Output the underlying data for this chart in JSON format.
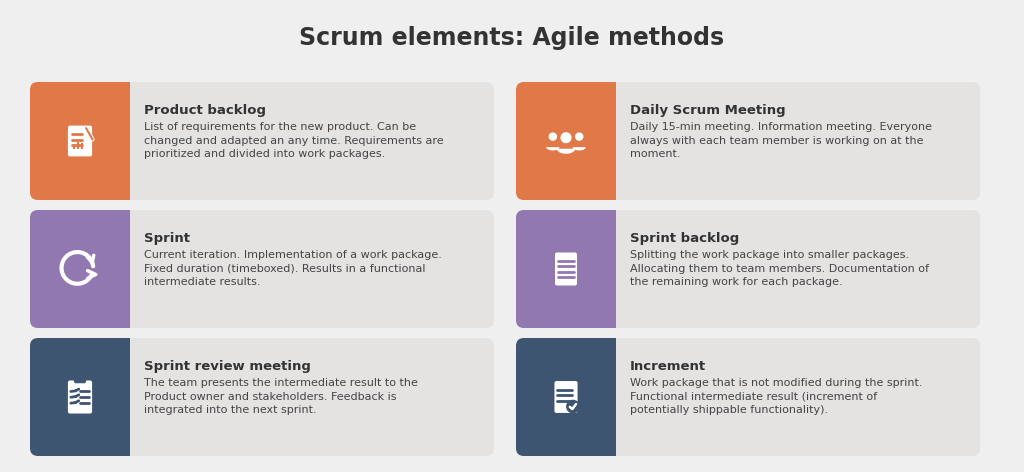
{
  "title": "Scrum elements: Agile methods",
  "title_fontsize": 17,
  "background_color": "#f0efef",
  "card_bg_color": "#e5e2e2",
  "cards": [
    {
      "row": 0,
      "col": 0,
      "icon_color": "#e07848",
      "title": "Product backlog",
      "text": "List of requirements for the new product. Can be\nchanged and adapted an any time. Requirements are\nprioritized and divided into work packages.",
      "icon": "backlog"
    },
    {
      "row": 0,
      "col": 1,
      "icon_color": "#e07848",
      "title": "Daily Scrum Meeting",
      "text": "Daily 15-min meeting. Information meeting. Everyone\nalways with each team member is working on at the\nmoment.",
      "icon": "meeting"
    },
    {
      "row": 1,
      "col": 0,
      "icon_color": "#9178b0",
      "title": "Sprint",
      "text": "Current iteration. Implementation of a work package.\nFixed duration (timeboxed). Results in a functional\nintermediate results.",
      "icon": "sprint"
    },
    {
      "row": 1,
      "col": 1,
      "icon_color": "#9178b0",
      "title": "Sprint backlog",
      "text": "Splitting the work package into smaller packages.\nAllocating them to team members. Documentation of\nthe remaining work for each package.",
      "icon": "sprintbacklog"
    },
    {
      "row": 2,
      "col": 0,
      "icon_color": "#3d5570",
      "title": "Sprint review meeting",
      "text": "The team presents the intermediate result to the\nProduct owner and stakeholders. Feedback is\nintegrated into the next sprint.",
      "icon": "review"
    },
    {
      "row": 2,
      "col": 1,
      "icon_color": "#3d5570",
      "title": "Increment",
      "text": "Work package that is not modified during the sprint.\nFunctional intermediate result (increment of\npotentially shippable functionality).",
      "icon": "increment"
    }
  ],
  "title_color": "#333333",
  "card_title_color": "#333333",
  "card_text_color": "#444444"
}
